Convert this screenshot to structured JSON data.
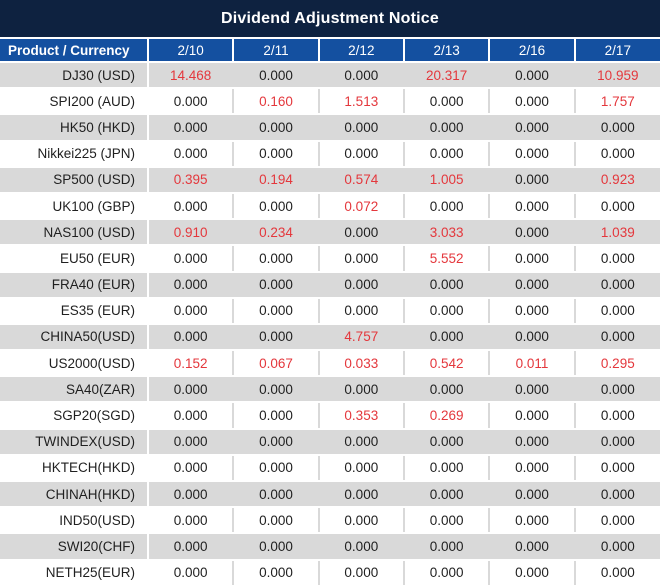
{
  "title": "Dividend Adjustment Notice",
  "colors": {
    "title_bar_bg": "#0e2240",
    "header_bg": "#1450a0",
    "stripe_bg": "#d9d9d9",
    "value_red": "#e4373c",
    "text_dark": "#1f1f1f"
  },
  "chart_data": {
    "type": "table",
    "title": "Dividend Adjustment Notice",
    "row_header_label": "Product / Currency",
    "columns": [
      "2/10",
      "2/11",
      "2/12",
      "2/13",
      "2/16",
      "2/17"
    ],
    "rows": [
      {
        "product": "DJ30 (USD)",
        "values": [
          "14.468",
          "0.000",
          "0.000",
          "20.317",
          "0.000",
          "10.959"
        ]
      },
      {
        "product": "SPI200 (AUD)",
        "values": [
          "0.000",
          "0.160",
          "1.513",
          "0.000",
          "0.000",
          "1.757"
        ]
      },
      {
        "product": "HK50 (HKD)",
        "values": [
          "0.000",
          "0.000",
          "0.000",
          "0.000",
          "0.000",
          "0.000"
        ]
      },
      {
        "product": "Nikkei225 (JPN)",
        "values": [
          "0.000",
          "0.000",
          "0.000",
          "0.000",
          "0.000",
          "0.000"
        ]
      },
      {
        "product": "SP500 (USD)",
        "values": [
          "0.395",
          "0.194",
          "0.574",
          "1.005",
          "0.000",
          "0.923"
        ]
      },
      {
        "product": "UK100 (GBP)",
        "values": [
          "0.000",
          "0.000",
          "0.072",
          "0.000",
          "0.000",
          "0.000"
        ]
      },
      {
        "product": "NAS100 (USD)",
        "values": [
          "0.910",
          "0.234",
          "0.000",
          "3.033",
          "0.000",
          "1.039"
        ]
      },
      {
        "product": "EU50 (EUR)",
        "values": [
          "0.000",
          "0.000",
          "0.000",
          "5.552",
          "0.000",
          "0.000"
        ]
      },
      {
        "product": "FRA40 (EUR)",
        "values": [
          "0.000",
          "0.000",
          "0.000",
          "0.000",
          "0.000",
          "0.000"
        ]
      },
      {
        "product": "ES35 (EUR)",
        "values": [
          "0.000",
          "0.000",
          "0.000",
          "0.000",
          "0.000",
          "0.000"
        ]
      },
      {
        "product": "CHINA50(USD)",
        "values": [
          "0.000",
          "0.000",
          "4.757",
          "0.000",
          "0.000",
          "0.000"
        ]
      },
      {
        "product": "US2000(USD)",
        "values": [
          "0.152",
          "0.067",
          "0.033",
          "0.542",
          "0.011",
          "0.295"
        ]
      },
      {
        "product": "SA40(ZAR)",
        "values": [
          "0.000",
          "0.000",
          "0.000",
          "0.000",
          "0.000",
          "0.000"
        ]
      },
      {
        "product": "SGP20(SGD)",
        "values": [
          "0.000",
          "0.000",
          "0.353",
          "0.269",
          "0.000",
          "0.000"
        ]
      },
      {
        "product": "TWINDEX(USD)",
        "values": [
          "0.000",
          "0.000",
          "0.000",
          "0.000",
          "0.000",
          "0.000"
        ]
      },
      {
        "product": "HKTECH(HKD)",
        "values": [
          "0.000",
          "0.000",
          "0.000",
          "0.000",
          "0.000",
          "0.000"
        ]
      },
      {
        "product": "CHINAH(HKD)",
        "values": [
          "0.000",
          "0.000",
          "0.000",
          "0.000",
          "0.000",
          "0.000"
        ]
      },
      {
        "product": "IND50(USD)",
        "values": [
          "0.000",
          "0.000",
          "0.000",
          "0.000",
          "0.000",
          "0.000"
        ]
      },
      {
        "product": "SWI20(CHF)",
        "values": [
          "0.000",
          "0.000",
          "0.000",
          "0.000",
          "0.000",
          "0.000"
        ]
      },
      {
        "product": "NETH25(EUR)",
        "values": [
          "0.000",
          "0.000",
          "0.000",
          "0.000",
          "0.000",
          "0.000"
        ]
      }
    ]
  }
}
